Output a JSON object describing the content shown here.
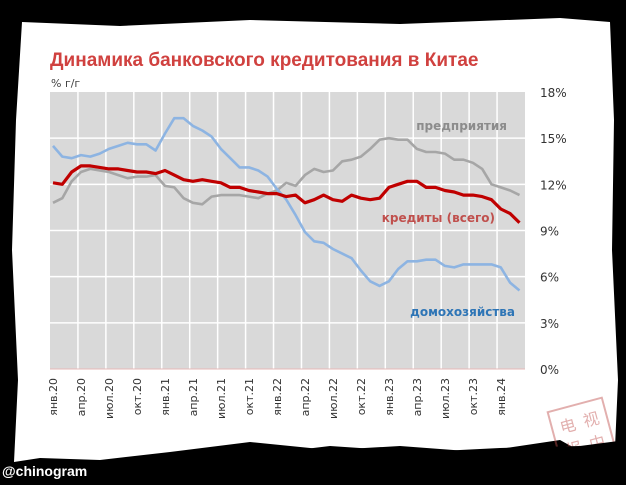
{
  "handle": "@chinogram",
  "stamp_text": "电视报中",
  "chart_data": {
    "type": "line",
    "title": "Динамика банковского кредитования в Китае",
    "ylabel": "% г/г",
    "xlabel": "",
    "ylim": [
      0,
      18
    ],
    "yticks": [
      0,
      3,
      6,
      9,
      12,
      15,
      18
    ],
    "ytick_labels": [
      "0%",
      "3%",
      "6%",
      "9%",
      "12%",
      "15%",
      "18%"
    ],
    "x_start": "янв.20",
    "x_end": "мар.24",
    "x_frequency": "monthly",
    "xtick_labels": [
      "янв.20",
      "апр.20",
      "июл.20",
      "окт.20",
      "янв.21",
      "апр.21",
      "июл.21",
      "окт.21",
      "янв.22",
      "апр.22",
      "июл.22",
      "окт.22",
      "янв.23",
      "апр.23",
      "июл.23",
      "окт.23",
      "янв.24"
    ],
    "grid": true,
    "legend": "inline labels",
    "series": [
      {
        "name": "предприятия",
        "color": "#a6a6a6",
        "label_color": "#8c8c8c",
        "values": [
          10.8,
          11.1,
          12.2,
          12.8,
          13.0,
          12.9,
          12.8,
          12.6,
          12.4,
          12.5,
          12.5,
          12.6,
          11.9,
          11.8,
          11.1,
          10.8,
          10.7,
          11.2,
          11.3,
          11.3,
          11.3,
          11.2,
          11.1,
          11.4,
          11.6,
          12.1,
          11.9,
          12.6,
          13.0,
          12.8,
          12.9,
          13.5,
          13.6,
          13.8,
          14.3,
          14.9,
          15.0,
          14.9,
          14.9,
          14.3,
          14.1,
          14.1,
          14.0,
          13.6,
          13.6,
          13.4,
          13.0,
          12.0,
          11.8,
          11.6,
          11.3
        ]
      },
      {
        "name": "кредиты (всего)",
        "color": "#c00000",
        "label_color": "#c0504d",
        "values": [
          12.1,
          12.0,
          12.8,
          13.2,
          13.2,
          13.1,
          13.0,
          13.0,
          12.9,
          12.8,
          12.8,
          12.7,
          12.9,
          12.6,
          12.3,
          12.2,
          12.3,
          12.2,
          12.1,
          11.8,
          11.8,
          11.6,
          11.5,
          11.4,
          11.4,
          11.2,
          11.3,
          10.8,
          11.0,
          11.3,
          11.0,
          10.9,
          11.3,
          11.1,
          11.0,
          11.1,
          11.8,
          12.0,
          12.2,
          12.2,
          11.8,
          11.8,
          11.6,
          11.5,
          11.3,
          11.3,
          11.2,
          11.0,
          10.4,
          10.1,
          9.5
        ]
      },
      {
        "name": "домохозяйства",
        "color": "#8db4e2",
        "label_color": "#2e75b6",
        "values": [
          14.5,
          13.8,
          13.7,
          13.9,
          13.8,
          14.0,
          14.3,
          14.5,
          14.7,
          14.6,
          14.6,
          14.2,
          15.3,
          16.3,
          16.3,
          15.8,
          15.5,
          15.1,
          14.3,
          13.7,
          13.1,
          13.1,
          12.9,
          12.5,
          11.7,
          11.0,
          10.0,
          8.9,
          8.3,
          8.2,
          7.8,
          7.5,
          7.2,
          6.4,
          5.7,
          5.4,
          5.7,
          6.5,
          7.0,
          7.0,
          7.1,
          7.1,
          6.7,
          6.6,
          6.8,
          6.8,
          6.8,
          6.8,
          6.6,
          5.6,
          5.1
        ]
      }
    ]
  }
}
